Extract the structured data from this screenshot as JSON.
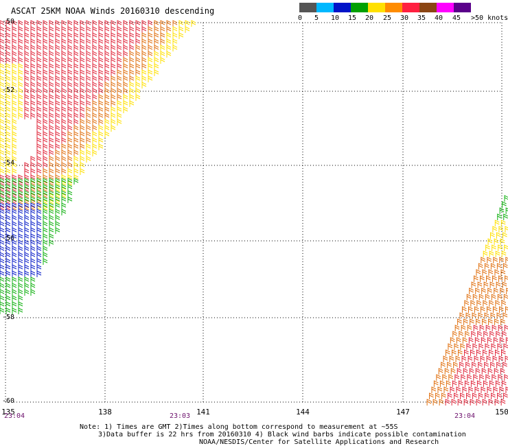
{
  "title": "ASCAT 25KM NOAA Winds 20160310 descending",
  "colorbar": {
    "colors": [
      "#555555",
      "#00b8ff",
      "#0014c8",
      "#00a000",
      "#ffe000",
      "#ff8c00",
      "#ff2040",
      "#8b4513",
      "#ff00ff",
      "#5a008a"
    ],
    "labels": [
      "0",
      "5",
      "10",
      "15",
      "20",
      "25",
      "30",
      "35",
      "40",
      "45",
      ">50 knots"
    ]
  },
  "map": {
    "lon_range": [
      135,
      150
    ],
    "lat_range": [
      -60,
      -50
    ],
    "lon_ticks": [
      "135",
      "138",
      "141",
      "144",
      "147",
      "150"
    ],
    "lat_ticks": [
      "-50",
      "-52",
      "-54",
      "-56",
      "-58",
      "-60"
    ],
    "grid": "dotted",
    "pass_times": [
      "23:04",
      "23:03",
      "23:04"
    ],
    "swath_regions": [
      {
        "name": "western-swath",
        "speed_class": "25-35 knots",
        "colors": [
          "red",
          "orange",
          "yellow"
        ]
      },
      {
        "name": "southwest-calm-area",
        "speed_class": "10-20 knots",
        "colors": [
          "blue",
          "green"
        ]
      },
      {
        "name": "eastern-swath",
        "speed_class": "25-35 knots",
        "colors": [
          "red",
          "orange",
          "yellow",
          "green"
        ]
      }
    ]
  },
  "notes": {
    "line1": "Note: 1) Times are GMT 2)Times along bottom correspond to measurement at ~55S",
    "line2": "3)Data buffer is 22 hrs from 20160310 4) Black wind barbs indicate possible contamination",
    "line3": "NOAA/NESDIS/Center for Satellite Applications and Research"
  }
}
